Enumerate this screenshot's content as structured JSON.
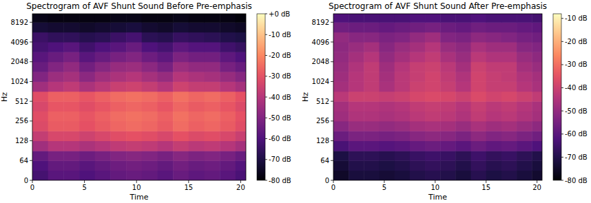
{
  "chart_data": [
    {
      "type": "heatmap",
      "title": "Spectrogram of AVF Shunt Sound Before Pre-emphasis",
      "x_label": "Time",
      "y_label": "Hz",
      "xlim": [
        0,
        20.5
      ],
      "ylim": [
        0,
        11025
      ],
      "log": "y",
      "xticks": [
        0,
        5,
        10,
        15,
        20
      ],
      "yticks": [
        0,
        64,
        128,
        256,
        512,
        1024,
        2048,
        4096,
        8192
      ],
      "time_bins": [
        0,
        1.5,
        3,
        4.5,
        6,
        7.5,
        9,
        10.5,
        12,
        13.5,
        15,
        16.5,
        18,
        19.5,
        20.5
      ],
      "freq_bins": [
        0,
        32,
        64,
        90,
        128,
        181,
        256,
        362,
        512,
        724,
        1024,
        1448,
        2048,
        2896,
        4096,
        5793,
        8192,
        11025
      ],
      "cells": [
        [
          -62,
          -58,
          -58,
          -60,
          -58,
          -56,
          -55,
          -56,
          -58,
          -55,
          -57,
          -56,
          -58,
          -61
        ],
        [
          -60,
          -56,
          -56,
          -58,
          -56,
          -54,
          -53,
          -54,
          -56,
          -53,
          -55,
          -54,
          -56,
          -59
        ],
        [
          -56,
          -52,
          -52,
          -54,
          -52,
          -50,
          -49,
          -50,
          -52,
          -49,
          -51,
          -50,
          -52,
          -55
        ],
        [
          -44,
          -40,
          -40,
          -42,
          -40,
          -38,
          -37,
          -38,
          -40,
          -37,
          -39,
          -38,
          -40,
          -43
        ],
        [
          -37,
          -33,
          -33,
          -35,
          -33,
          -31,
          -30,
          -31,
          -33,
          -30,
          -32,
          -31,
          -33,
          -36
        ],
        [
          -32,
          -28,
          -28,
          -30,
          -28,
          -26,
          -25,
          -26,
          -28,
          -25,
          -27,
          -26,
          -28,
          -31
        ],
        [
          -31,
          -27,
          -27,
          -29,
          -27,
          -25,
          -24,
          -25,
          -27,
          -24,
          -26,
          -25,
          -27,
          -30
        ],
        [
          -33,
          -29,
          -29,
          -31,
          -29,
          -27,
          -26,
          -27,
          -29,
          -26,
          -28,
          -27,
          -29,
          -32
        ],
        [
          -31,
          -27,
          -27,
          -29,
          -27,
          -25,
          -24,
          -25,
          -27,
          -24,
          -26,
          -25,
          -27,
          -30
        ],
        [
          -44,
          -40,
          -38,
          -42,
          -39,
          -36,
          -35,
          -37,
          -40,
          -35,
          -37,
          -37,
          -40,
          -43
        ],
        [
          -50,
          -45,
          -43,
          -48,
          -44,
          -42,
          -40,
          -43,
          -46,
          -40,
          -42,
          -43,
          -46,
          -49
        ],
        [
          -55,
          -50,
          -47,
          -53,
          -49,
          -46,
          -45,
          -48,
          -52,
          -45,
          -47,
          -47,
          -52,
          -55
        ],
        [
          -58,
          -55,
          -52,
          -58,
          -55,
          -52,
          -50,
          -54,
          -57,
          -51,
          -53,
          -53,
          -57,
          -60
        ],
        [
          -62,
          -60,
          -58,
          -63,
          -60,
          -58,
          -55,
          -60,
          -62,
          -57,
          -59,
          -59,
          -63,
          -65
        ],
        [
          -64,
          -66,
          -66,
          -68,
          -67,
          -64,
          -62,
          -67,
          -68,
          -65,
          -66,
          -67,
          -69,
          -70
        ],
        [
          -72,
          -73,
          -73,
          -74,
          -73,
          -72,
          -71,
          -73,
          -74,
          -72,
          -73,
          -73,
          -74,
          -75
        ],
        [
          -77,
          -78,
          -78,
          -78,
          -78,
          -77,
          -77,
          -78,
          -78,
          -77,
          -78,
          -78,
          -78,
          -79
        ]
      ],
      "colorbar_range": [
        -80,
        0
      ],
      "colorbar_ticks": [
        {
          "value": 0,
          "label": "+0 dB"
        },
        {
          "value": -10,
          "label": "-10 dB"
        },
        {
          "value": -20,
          "label": "-20 dB"
        },
        {
          "value": -30,
          "label": "-30 dB"
        },
        {
          "value": -40,
          "label": "-40 dB"
        },
        {
          "value": -50,
          "label": "-50 dB"
        },
        {
          "value": -60,
          "label": "-60 dB"
        },
        {
          "value": -70,
          "label": "-70 dB"
        },
        {
          "value": -80,
          "label": "-80 dB"
        }
      ]
    },
    {
      "type": "heatmap",
      "title": "Spectrogram of AVF Shunt Sound After Pre-emphasis",
      "x_label": "Time",
      "y_label": "Hz",
      "xlim": [
        0,
        20.5
      ],
      "ylim": [
        0,
        11025
      ],
      "log": "y",
      "xticks": [
        0,
        5,
        10,
        15,
        20
      ],
      "yticks": [
        0,
        64,
        128,
        256,
        512,
        1024,
        2048,
        4096,
        8192
      ],
      "time_bins": [
        0,
        1.5,
        3,
        4.5,
        6,
        7.5,
        9,
        10.5,
        12,
        13.5,
        15,
        16.5,
        18,
        19.5,
        20.5
      ],
      "freq_bins": [
        0,
        32,
        64,
        90,
        128,
        181,
        256,
        362,
        512,
        724,
        1024,
        1448,
        2048,
        2896,
        4096,
        5793,
        8192,
        11025
      ],
      "cells": [
        [
          -75,
          -72,
          -72,
          -73,
          -72,
          -70,
          -69,
          -70,
          -72,
          -69,
          -71,
          -70,
          -72,
          -74
        ],
        [
          -73,
          -70,
          -70,
          -71,
          -70,
          -68,
          -67,
          -68,
          -70,
          -67,
          -69,
          -68,
          -70,
          -72
        ],
        [
          -71,
          -68,
          -68,
          -69,
          -68,
          -66,
          -65,
          -66,
          -68,
          -65,
          -67,
          -66,
          -68,
          -70
        ],
        [
          -63,
          -60,
          -60,
          -61,
          -60,
          -58,
          -57,
          -58,
          -60,
          -57,
          -59,
          -58,
          -60,
          -62
        ],
        [
          -57,
          -54,
          -54,
          -55,
          -54,
          -52,
          -51,
          -52,
          -54,
          -51,
          -53,
          -52,
          -54,
          -56
        ],
        [
          -52,
          -49,
          -49,
          -50,
          -49,
          -47,
          -46,
          -47,
          -49,
          -46,
          -48,
          -47,
          -49,
          -51
        ],
        [
          -48,
          -45,
          -45,
          -46,
          -45,
          -43,
          -42,
          -43,
          -45,
          -42,
          -44,
          -43,
          -45,
          -47
        ],
        [
          -47,
          -44,
          -44,
          -45,
          -44,
          -42,
          -41,
          -42,
          -44,
          -41,
          -43,
          -42,
          -44,
          -46
        ],
        [
          -43,
          -40,
          -40,
          -41,
          -40,
          -38,
          -37,
          -38,
          -40,
          -37,
          -39,
          -38,
          -40,
          -42
        ],
        [
          -47,
          -44,
          -42,
          -46,
          -43,
          -40,
          -39,
          -41,
          -44,
          -39,
          -41,
          -41,
          -44,
          -46
        ],
        [
          -48,
          -44,
          -42,
          -47,
          -43,
          -41,
          -39,
          -42,
          -45,
          -39,
          -41,
          -42,
          -45,
          -47
        ],
        [
          -49,
          -45,
          -42,
          -48,
          -44,
          -41,
          -40,
          -43,
          -47,
          -40,
          -42,
          -42,
          -47,
          -49
        ],
        [
          -50,
          -47,
          -44,
          -50,
          -47,
          -44,
          -42,
          -46,
          -49,
          -43,
          -45,
          -45,
          -49,
          -51
        ],
        [
          -51,
          -49,
          -47,
          -52,
          -49,
          -47,
          -44,
          -49,
          -51,
          -46,
          -48,
          -48,
          -52,
          -53
        ],
        [
          -50,
          -52,
          -52,
          -54,
          -53,
          -50,
          -48,
          -53,
          -54,
          -51,
          -52,
          -53,
          -55,
          -56
        ],
        [
          -56,
          -57,
          -57,
          -58,
          -57,
          -56,
          -55,
          -57,
          -58,
          -56,
          -57,
          -57,
          -58,
          -59
        ],
        [
          -62,
          -63,
          -63,
          -63,
          -63,
          -62,
          -62,
          -63,
          -63,
          -62,
          -63,
          -63,
          -63,
          -64
        ]
      ],
      "colorbar_range": [
        -80,
        -8
      ],
      "colorbar_ticks": [
        {
          "value": -10,
          "label": "-10 dB"
        },
        {
          "value": -20,
          "label": "-20 dB"
        },
        {
          "value": -30,
          "label": "-30 dB"
        },
        {
          "value": -40,
          "label": "-40 dB"
        },
        {
          "value": -50,
          "label": "-50 dB"
        },
        {
          "value": -60,
          "label": "-60 dB"
        },
        {
          "value": -70,
          "label": "-70 dB"
        },
        {
          "value": -80,
          "label": "-80 dB"
        }
      ]
    }
  ]
}
